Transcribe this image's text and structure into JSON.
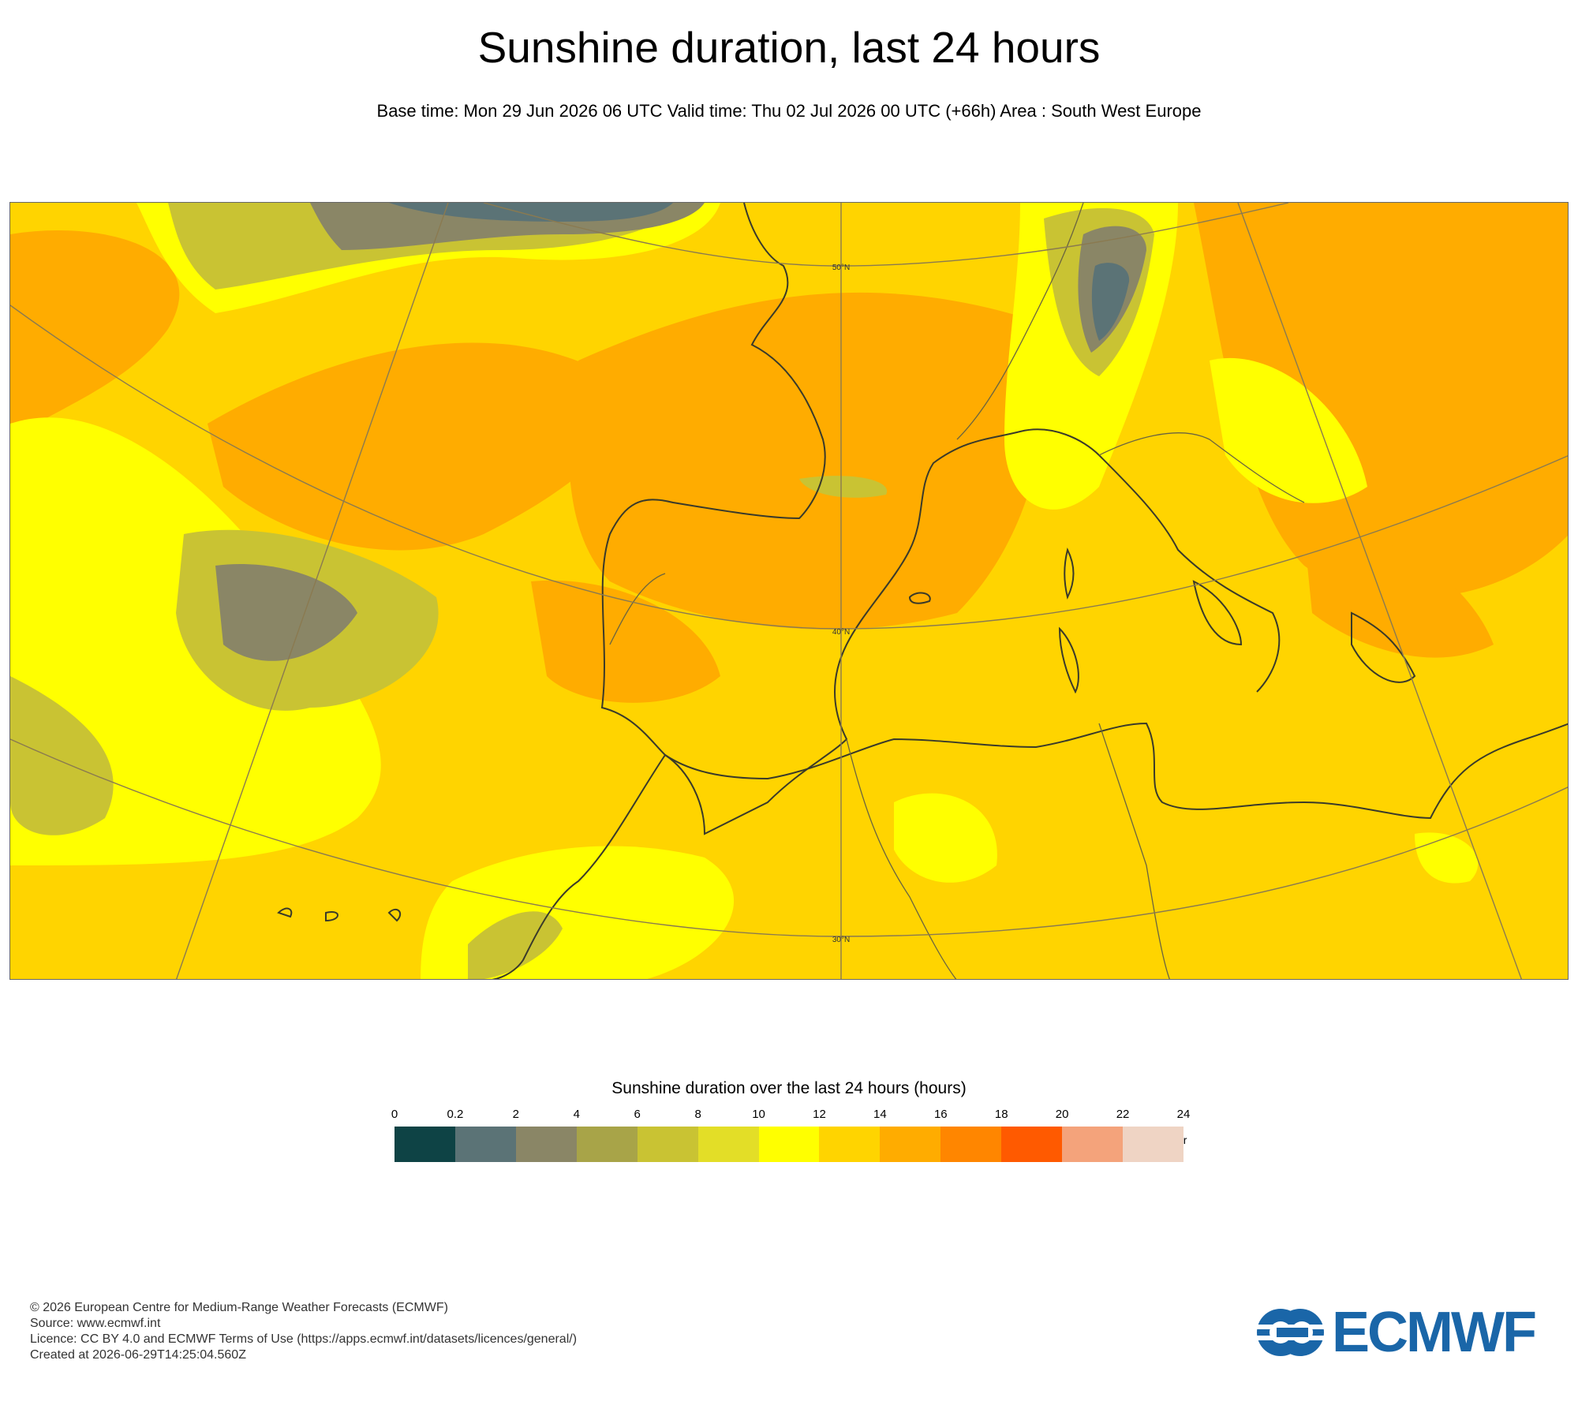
{
  "title": "Sunshine duration, last 24 hours",
  "subtitle": "Base time: Mon 29 Jun 2026 06 UTC Valid time: Thu 02 Jul 2026 00 UTC (+66h) Area : South West Europe",
  "map": {
    "latitude_labels": [
      "50°N",
      "40°N",
      "30°N"
    ],
    "background_color": "#ffd400"
  },
  "legend": {
    "title": "Sunshine duration over the last 24 hours (hours)",
    "unit": "-hr",
    "ticks": [
      "0",
      "0.2",
      "2",
      "4",
      "6",
      "8",
      "10",
      "12",
      "14",
      "16",
      "18",
      "20",
      "22",
      "24"
    ],
    "colors": [
      "#0e4345",
      "#5b7376",
      "#8a8666",
      "#a8a448",
      "#c9c333",
      "#e3de27",
      "#ffff00",
      "#ffd400",
      "#ffac00",
      "#ff8600",
      "#ff5a00",
      "#f4a37b",
      "#efd4c4"
    ]
  },
  "footer": {
    "line1": "© 2026 European Centre for Medium-Range Weather Forecasts (ECMWF)",
    "line2": "Source: www.ecmwf.int",
    "line3": "Licence: CC BY 4.0 and ECMWF Terms of Use (https://apps.ecmwf.int/datasets/licences/general/)",
    "line4": "Created at 2026-06-29T14:25:04.560Z"
  },
  "logo": {
    "text": "ECMWF",
    "color": "#1a66a8"
  }
}
